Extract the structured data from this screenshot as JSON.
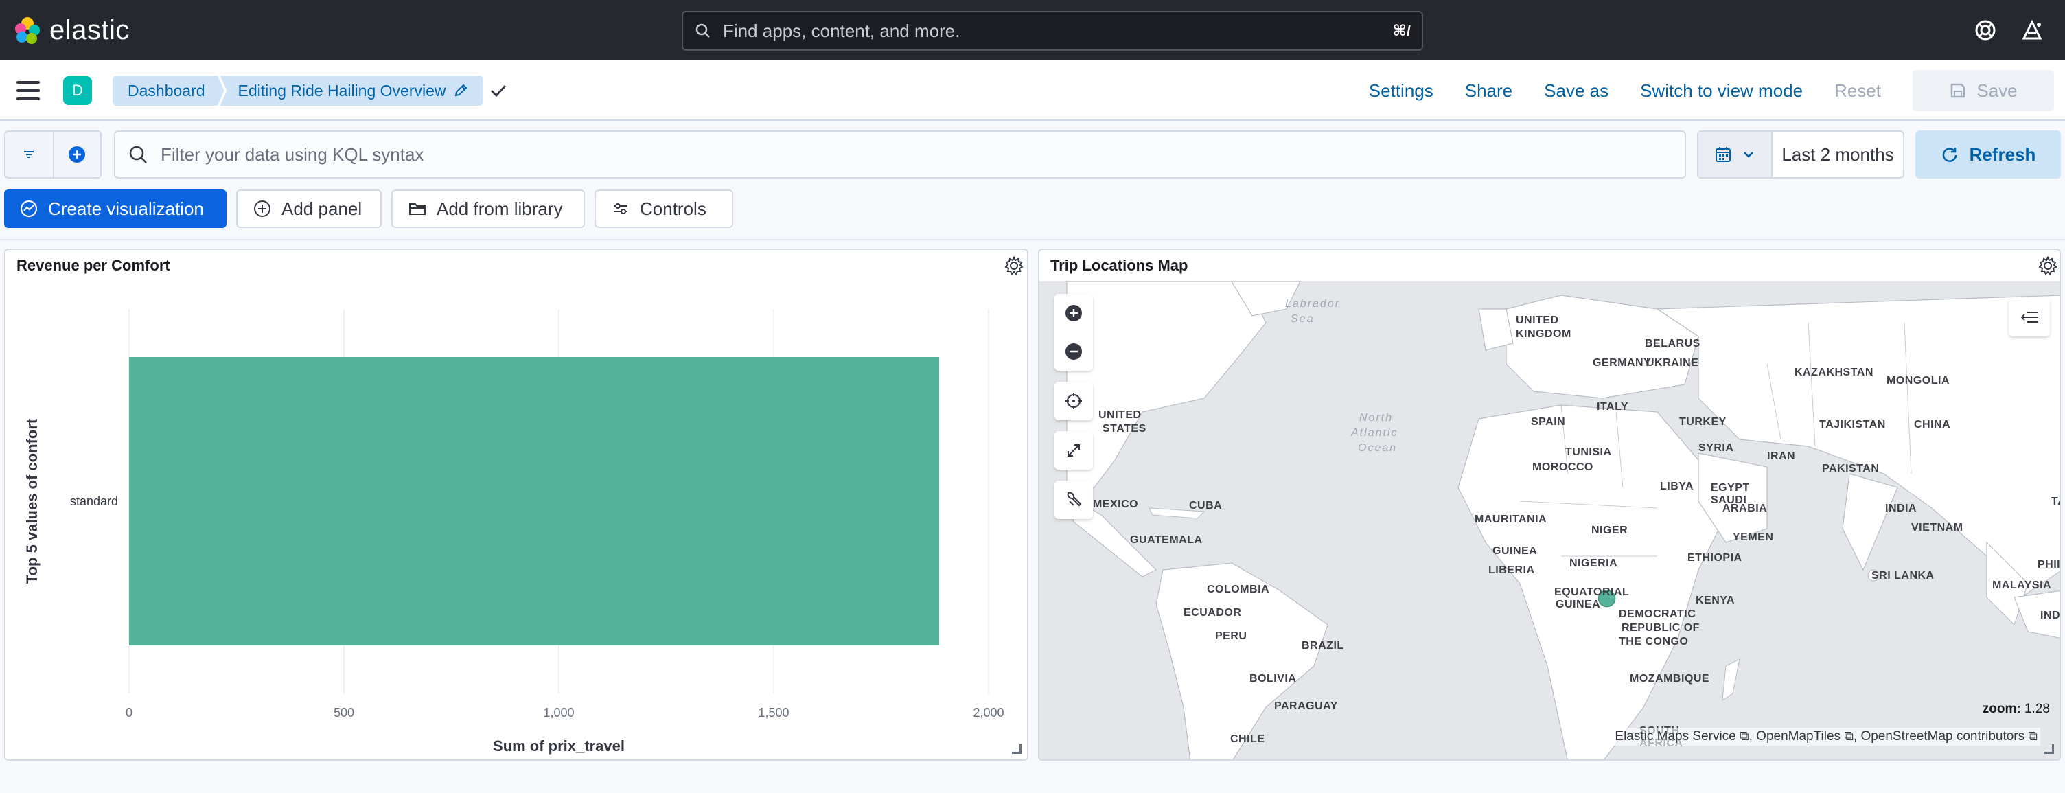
{
  "topbar": {
    "brand": "elastic",
    "search_placeholder": "Find apps, content, and more.",
    "search_shortcut": "⌘/"
  },
  "navbar": {
    "space_initial": "D",
    "breadcrumbs": [
      "Dashboard",
      "Editing Ride Hailing Overview"
    ],
    "links": {
      "settings": "Settings",
      "share": "Share",
      "save_as": "Save as",
      "switch_view": "Switch to view mode",
      "reset": "Reset",
      "save": "Save"
    }
  },
  "query": {
    "kql_placeholder": "Filter your data using KQL syntax",
    "time_range": "Last 2 months",
    "refresh": "Refresh"
  },
  "toolbar": {
    "create": "Create visualization",
    "add_panel": "Add panel",
    "add_library": "Add from library",
    "controls": "Controls"
  },
  "panels": {
    "chart_title": "Revenue per Comfort",
    "map_title": "Trip Locations Map"
  },
  "chart_data": {
    "type": "bar",
    "orientation": "horizontal",
    "categories": [
      "standard"
    ],
    "values": [
      1885
    ],
    "title": "",
    "xlabel": "Sum of prix_travel",
    "ylabel": "Top 5 values of confort",
    "xlim": [
      0,
      2000
    ],
    "xticks": [
      "0",
      "500",
      "1,000",
      "1,500",
      "2,000"
    ],
    "grid": true,
    "bar_color": "#54b399"
  },
  "map": {
    "zoom_label": "zoom:",
    "zoom_value": "1.28",
    "attribution": [
      "Elastic Maps Service",
      "OpenMapTiles",
      "OpenStreetMap contributors"
    ],
    "seas": [
      "Labrador",
      "Sea",
      "North",
      "Atlantic",
      "Ocean"
    ],
    "countries": [
      "UNITED",
      "KINGDOM",
      "BELARUS",
      "GERMANY",
      "UKRAINE",
      "KAZAKHSTAN",
      "MONGOLIA",
      "UNITED",
      "STATES",
      "ITALY",
      "SPAIN",
      "TURKEY",
      "TAJIKISTAN",
      "CHINA",
      "TUNISIA",
      "SYRIA",
      "IRAN",
      "PAKISTAN",
      "MOROCCO",
      "LIBYA",
      "EGYPT",
      "SAUDI",
      "ARABIA",
      "INDIA",
      "TAI",
      "MEXICO",
      "CUBA",
      "MAURITANIA",
      "NIGER",
      "YEMEN",
      "VIETNAM",
      "GUATEMALA",
      "GUINEA",
      "NIGERIA",
      "ETHIOPIA",
      "PHII",
      "LIBERIA",
      "SRI LANKA",
      "MALAYSIA",
      "COLOMBIA",
      "EQUATORIAL",
      "GUINEA",
      "KENYA",
      "INDON",
      "ECUADOR",
      "PERU",
      "DEMOCRATIC",
      "REPUBLIC OF",
      "THE CONGO",
      "BRAZIL",
      "BOLIVIA",
      "MOZAMBIQUE",
      "PARAGUAY",
      "CHILE",
      "SOUTH",
      "AFRICA"
    ],
    "point_color": "#54b399",
    "point_lat": -1.3,
    "point_lon": 36.8
  },
  "colors": {
    "header_bg": "#25282f",
    "primary": "#0b64dd",
    "link": "#0061a6",
    "bar": "#54b399"
  }
}
